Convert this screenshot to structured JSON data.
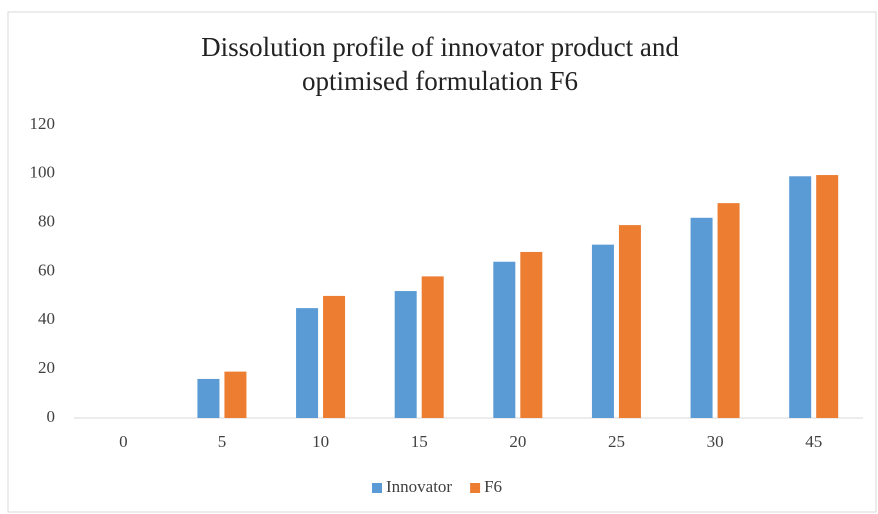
{
  "chart_data": {
    "type": "bar",
    "title": [
      "Dissolution profile of innovator product and",
      "optimised formulation  F6"
    ],
    "categories": [
      "0",
      "5",
      "10",
      "15",
      "20",
      "25",
      "30",
      "45"
    ],
    "series": [
      {
        "name": "Innovator",
        "color": "#5b9bd5",
        "values": [
          0,
          16,
          45,
          52,
          64,
          71,
          82,
          99
        ]
      },
      {
        "name": "F6",
        "color": "#ed7d31",
        "values": [
          0,
          19,
          50,
          58,
          68,
          79,
          88,
          99.5
        ]
      }
    ],
    "ylim": [
      0,
      120
    ],
    "yticks": [
      0,
      20,
      40,
      60,
      80,
      100,
      120
    ],
    "grid": false,
    "legend": "bottom"
  }
}
